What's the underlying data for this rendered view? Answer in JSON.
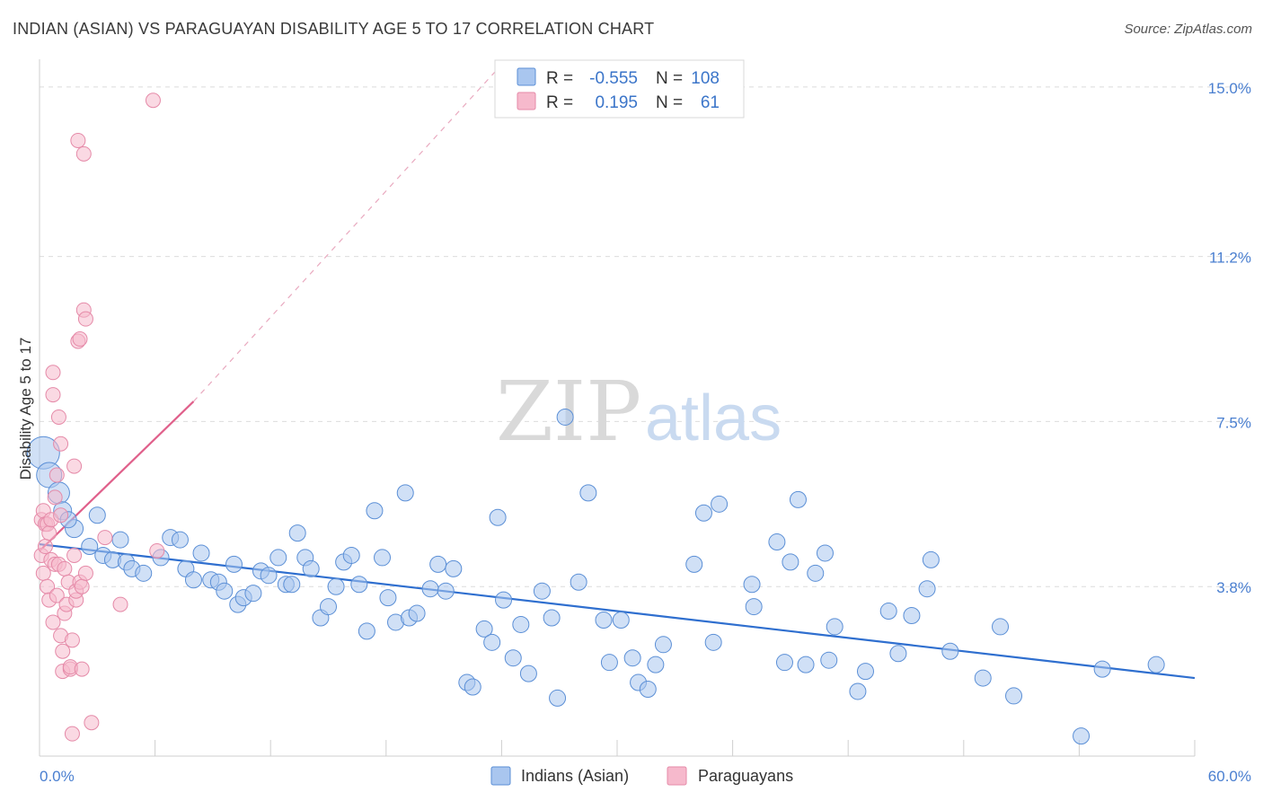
{
  "header": {
    "title": "INDIAN (ASIAN) VS PARAGUAYAN DISABILITY AGE 5 TO 17 CORRELATION CHART",
    "source": "Source: ZipAtlas.com"
  },
  "watermark": {
    "zip": "ZIP",
    "atlas": "atlas"
  },
  "legend": {
    "rows": [
      {
        "r_label": "R =",
        "r_value": "-0.555",
        "n_label": "N =",
        "n_value": "108",
        "color": "#a9c6ef"
      },
      {
        "r_label": "R =",
        "r_value": "0.195",
        "n_label": "N =",
        "n_value": "61",
        "color": "#f6b9cc"
      }
    ]
  },
  "bottom_legend": [
    {
      "label": "Indians (Asian)",
      "color": "#a9c6ef"
    },
    {
      "label": "Paraguayans",
      "color": "#f6b9cc"
    }
  ],
  "chart_data": {
    "type": "scatter",
    "title": "INDIAN (ASIAN) VS PARAGUAYAN DISABILITY AGE 5 TO 17 CORRELATION CHART",
    "xlabel": "",
    "ylabel": "Disability Age 5 to 17",
    "xlim": [
      0,
      60
    ],
    "ylim": [
      0,
      15.5
    ],
    "x_tick_labels": [
      "0.0%",
      "60.0%"
    ],
    "y_ticks": [
      3.8,
      7.5,
      11.2,
      15.0
    ],
    "y_tick_labels": [
      "3.8%",
      "7.5%",
      "11.2%",
      "15.0%"
    ],
    "grid": true,
    "legend_position": "top-center",
    "series": [
      {
        "name": "Indians (Asian)",
        "color": "#a9c6ef",
        "stroke": "#5b8fd6",
        "trend": {
          "x": [
            0,
            60
          ],
          "y": [
            4.75,
            1.75
          ],
          "color": "#2f6fcf"
        },
        "points": [
          [
            0.2,
            6.8,
            18
          ],
          [
            0.5,
            6.3,
            14
          ],
          [
            1,
            5.9,
            12
          ],
          [
            1.2,
            5.5,
            10
          ],
          [
            1.8,
            5.1,
            10
          ],
          [
            1.5,
            5.3,
            9
          ],
          [
            2.6,
            4.7,
            9
          ],
          [
            3,
            5.4,
            9
          ],
          [
            3.3,
            4.5,
            9
          ],
          [
            3.8,
            4.4,
            9
          ],
          [
            4.2,
            4.85,
            9
          ],
          [
            4.5,
            4.35,
            9
          ],
          [
            4.8,
            4.2,
            9
          ],
          [
            5.4,
            4.1,
            9
          ],
          [
            6.3,
            4.45,
            9
          ],
          [
            6.8,
            4.9,
            9
          ],
          [
            7.3,
            4.85,
            9
          ],
          [
            7.6,
            4.2,
            9
          ],
          [
            8.0,
            3.95,
            9
          ],
          [
            8.4,
            4.55,
            9
          ],
          [
            8.9,
            3.95,
            9
          ],
          [
            9.3,
            3.9,
            9
          ],
          [
            9.6,
            3.7,
            9
          ],
          [
            10.1,
            4.3,
            9
          ],
          [
            10.3,
            3.4,
            9
          ],
          [
            10.6,
            3.55,
            9
          ],
          [
            11.1,
            3.65,
            9
          ],
          [
            11.5,
            4.15,
            9
          ],
          [
            11.9,
            4.05,
            9
          ],
          [
            12.4,
            4.45,
            9
          ],
          [
            12.8,
            3.85,
            9
          ],
          [
            13.1,
            3.85,
            9
          ],
          [
            13.4,
            5.0,
            9
          ],
          [
            13.8,
            4.45,
            9
          ],
          [
            14.1,
            4.2,
            9
          ],
          [
            14.6,
            3.1,
            9
          ],
          [
            15.0,
            3.35,
            9
          ],
          [
            15.4,
            3.8,
            9
          ],
          [
            15.8,
            4.35,
            9
          ],
          [
            16.2,
            4.5,
            9
          ],
          [
            16.6,
            3.85,
            9
          ],
          [
            17.0,
            2.8,
            9
          ],
          [
            17.4,
            5.5,
            9
          ],
          [
            17.8,
            4.45,
            9
          ],
          [
            18.1,
            3.55,
            9
          ],
          [
            18.5,
            3.0,
            9
          ],
          [
            19.0,
            5.9,
            9
          ],
          [
            19.2,
            3.1,
            9
          ],
          [
            19.6,
            3.2,
            9
          ],
          [
            20.3,
            3.75,
            9
          ],
          [
            20.7,
            4.3,
            9
          ],
          [
            21.1,
            3.7,
            9
          ],
          [
            21.5,
            4.2,
            9
          ],
          [
            22.2,
            1.65,
            9
          ],
          [
            22.5,
            1.55,
            9
          ],
          [
            23.1,
            2.85,
            9
          ],
          [
            23.5,
            2.55,
            9
          ],
          [
            23.8,
            5.35,
            9
          ],
          [
            24.1,
            3.5,
            9
          ],
          [
            24.6,
            2.2,
            9
          ],
          [
            25.0,
            2.95,
            9
          ],
          [
            25.4,
            1.85,
            9
          ],
          [
            26.1,
            3.7,
            9
          ],
          [
            26.6,
            3.1,
            9
          ],
          [
            26.9,
            1.3,
            9
          ],
          [
            27.3,
            7.6,
            9
          ],
          [
            28.0,
            3.9,
            9
          ],
          [
            28.5,
            5.9,
            9
          ],
          [
            29.3,
            3.05,
            9
          ],
          [
            29.6,
            2.1,
            9
          ],
          [
            30.2,
            3.05,
            9
          ],
          [
            30.8,
            2.2,
            9
          ],
          [
            31.1,
            1.65,
            9
          ],
          [
            31.6,
            1.5,
            9
          ],
          [
            32.0,
            2.05,
            9
          ],
          [
            32.4,
            2.5,
            9
          ],
          [
            34.0,
            4.3,
            9
          ],
          [
            34.5,
            5.45,
            9
          ],
          [
            35.0,
            2.55,
            9
          ],
          [
            35.3,
            5.65,
            9
          ],
          [
            37.0,
            3.85,
            9
          ],
          [
            37.1,
            3.35,
            9
          ],
          [
            38.3,
            4.8,
            9
          ],
          [
            38.7,
            2.1,
            9
          ],
          [
            39.0,
            4.35,
            9
          ],
          [
            39.4,
            5.75,
            9
          ],
          [
            39.8,
            2.05,
            9
          ],
          [
            40.3,
            4.1,
            9
          ],
          [
            40.8,
            4.55,
            9
          ],
          [
            41.0,
            2.15,
            9
          ],
          [
            41.3,
            2.9,
            9
          ],
          [
            42.5,
            1.45,
            9
          ],
          [
            42.9,
            1.9,
            9
          ],
          [
            44.1,
            3.25,
            9
          ],
          [
            44.6,
            2.3,
            9
          ],
          [
            45.3,
            3.15,
            9
          ],
          [
            46.1,
            3.75,
            9
          ],
          [
            46.3,
            4.4,
            9
          ],
          [
            47.3,
            2.35,
            9
          ],
          [
            49.0,
            1.75,
            9
          ],
          [
            49.9,
            2.9,
            9
          ],
          [
            50.6,
            1.35,
            9
          ],
          [
            54.1,
            0.45,
            9
          ],
          [
            55.2,
            1.95,
            9
          ],
          [
            58.0,
            2.05,
            9
          ]
        ]
      },
      {
        "name": "Paraguayans",
        "color": "#f6b9cc",
        "stroke": "#e58aa8",
        "trend": {
          "x": [
            0,
            8
          ],
          "y": [
            4.6,
            7.95
          ],
          "color": "#e0608b",
          "dashed_extension_to": [
            24,
            15.5
          ]
        },
        "points": [
          [
            0.1,
            5.3,
            8
          ],
          [
            0.1,
            4.5,
            8
          ],
          [
            0.2,
            4.1,
            8
          ],
          [
            0.2,
            5.5,
            8
          ],
          [
            0.3,
            5.2,
            8
          ],
          [
            0.3,
            4.7,
            8
          ],
          [
            0.4,
            5.2,
            8
          ],
          [
            0.4,
            3.8,
            8
          ],
          [
            0.5,
            3.5,
            8
          ],
          [
            0.5,
            5.0,
            8
          ],
          [
            0.6,
            4.4,
            8
          ],
          [
            0.6,
            5.3,
            8
          ],
          [
            0.7,
            3.0,
            8
          ],
          [
            0.7,
            8.1,
            8
          ],
          [
            0.7,
            8.6,
            8
          ],
          [
            0.8,
            5.8,
            8
          ],
          [
            0.8,
            4.3,
            8
          ],
          [
            0.9,
            6.3,
            8
          ],
          [
            0.9,
            3.6,
            8
          ],
          [
            1.0,
            7.6,
            8
          ],
          [
            1.0,
            4.3,
            8
          ],
          [
            1.1,
            2.7,
            8
          ],
          [
            1.1,
            5.4,
            8
          ],
          [
            1.1,
            7.0,
            8
          ],
          [
            1.2,
            2.35,
            8
          ],
          [
            1.2,
            1.9,
            8
          ],
          [
            1.3,
            4.2,
            8
          ],
          [
            1.3,
            3.2,
            8
          ],
          [
            1.4,
            3.4,
            8
          ],
          [
            1.5,
            3.9,
            8
          ],
          [
            1.6,
            1.95,
            8
          ],
          [
            1.6,
            2.0,
            8
          ],
          [
            1.7,
            2.6,
            8
          ],
          [
            1.7,
            0.5,
            8
          ],
          [
            1.8,
            6.5,
            8
          ],
          [
            1.8,
            4.5,
            8
          ],
          [
            1.9,
            3.5,
            8
          ],
          [
            1.9,
            3.7,
            8
          ],
          [
            2.0,
            9.3,
            8
          ],
          [
            2.0,
            13.8,
            8
          ],
          [
            2.1,
            3.9,
            8
          ],
          [
            2.1,
            9.35,
            8
          ],
          [
            2.2,
            1.95,
            8
          ],
          [
            2.2,
            3.8,
            8
          ],
          [
            2.3,
            10.0,
            8
          ],
          [
            2.4,
            9.8,
            8
          ],
          [
            2.3,
            13.5,
            8
          ],
          [
            2.4,
            4.1,
            8
          ],
          [
            2.7,
            0.75,
            8
          ],
          [
            3.4,
            4.9,
            8
          ],
          [
            4.2,
            3.4,
            8
          ],
          [
            6.1,
            4.6,
            8
          ],
          [
            5.9,
            14.7,
            8
          ]
        ]
      }
    ]
  }
}
